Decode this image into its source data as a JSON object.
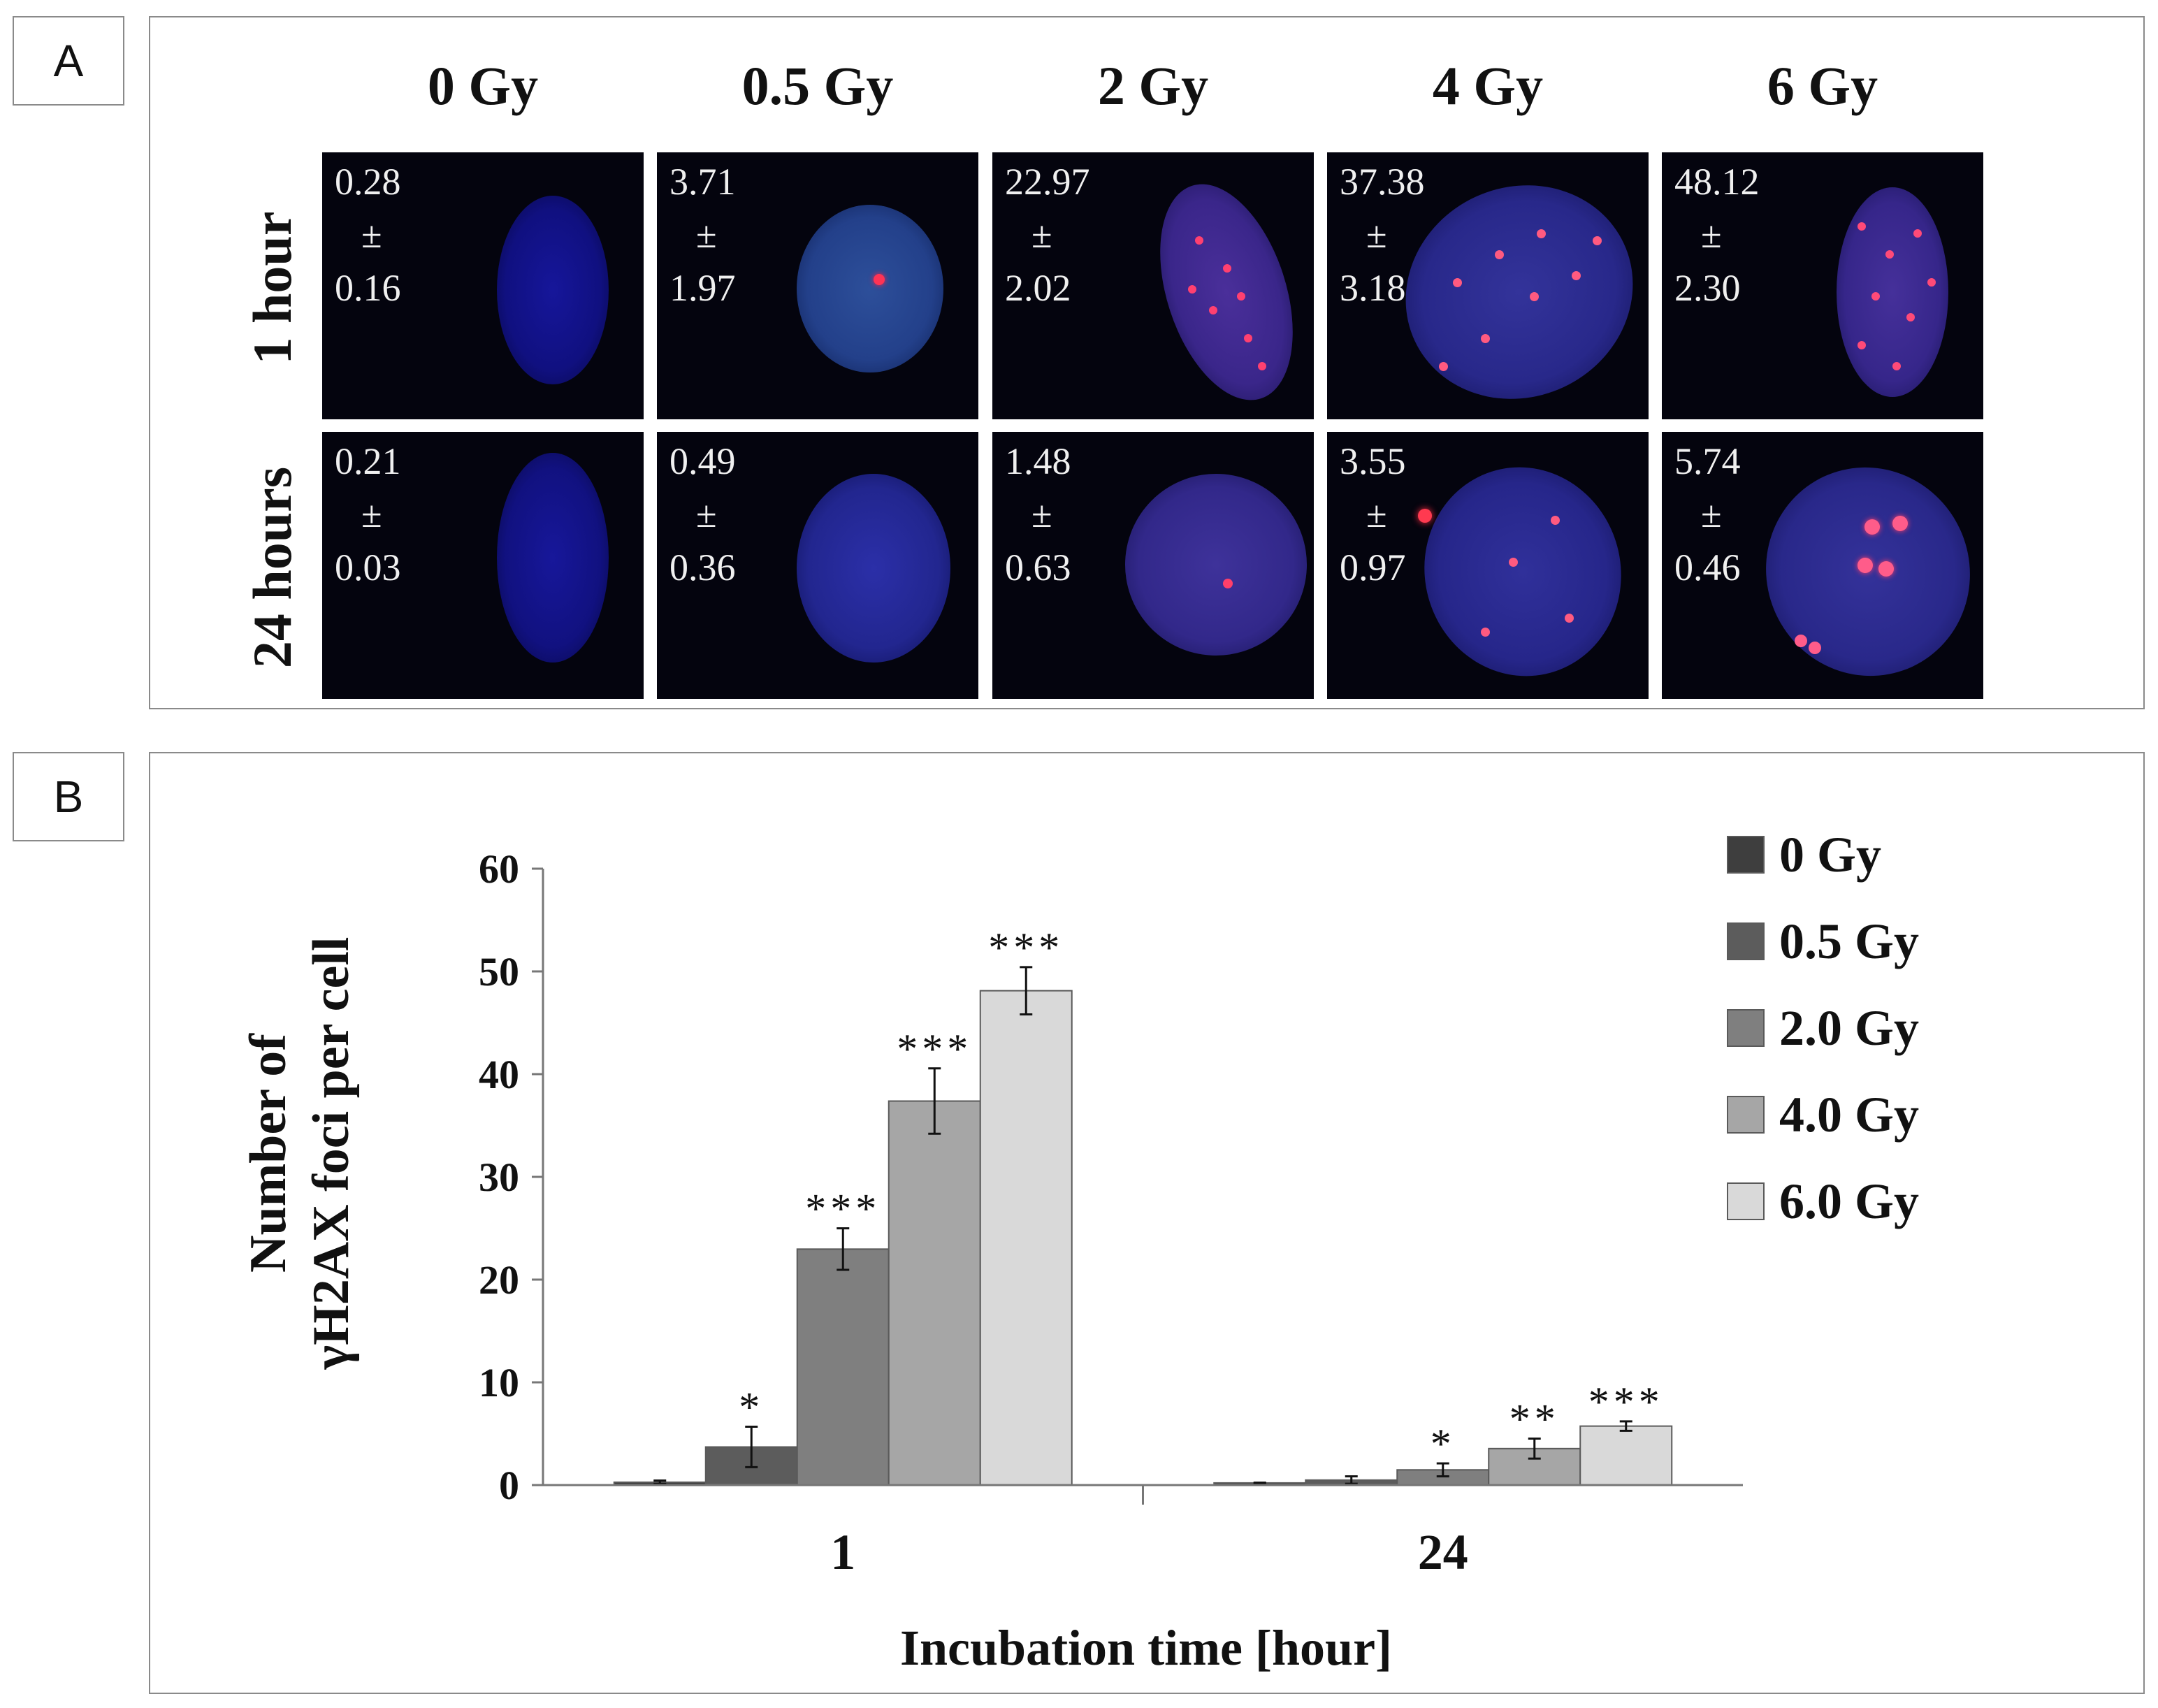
{
  "panel_a": {
    "label": "A",
    "columns": [
      "0 Gy",
      "0.5 Gy",
      "2 Gy",
      "4 Gy",
      "6 Gy"
    ],
    "rows": [
      {
        "label": "1 hour",
        "cells": [
          {
            "mean": "0.28",
            "pm": "±",
            "sd": "0.16"
          },
          {
            "mean": "3.71",
            "pm": "±",
            "sd": "1.97"
          },
          {
            "mean": "22.97",
            "pm": "±",
            "sd": "2.02"
          },
          {
            "mean": "37.38",
            "pm": "±",
            "sd": "3.18"
          },
          {
            "mean": "48.12",
            "pm": "±",
            "sd": "2.30"
          }
        ]
      },
      {
        "label": "24 hours",
        "cells": [
          {
            "mean": "0.21",
            "pm": "±",
            "sd": "0.03"
          },
          {
            "mean": "0.49",
            "pm": "±",
            "sd": "0.36"
          },
          {
            "mean": "1.48",
            "pm": "±",
            "sd": "0.63"
          },
          {
            "mean": "3.55",
            "pm": "±",
            "sd": "0.97"
          },
          {
            "mean": "5.74",
            "pm": "±",
            "sd": "0.46"
          }
        ]
      }
    ]
  },
  "panel_b": {
    "label": "B"
  },
  "chart_data": {
    "type": "bar",
    "title": "",
    "xlabel": "Incubation time [hour]",
    "ylabel_lines": [
      "Number of",
      "γH2AX foci per cell"
    ],
    "categories": [
      "1",
      "24"
    ],
    "ylim": [
      0,
      60
    ],
    "yticks": [
      0,
      10,
      20,
      30,
      40,
      50,
      60
    ],
    "legend_position": "right",
    "series": [
      {
        "name": "0 Gy",
        "color": "#3e3e3e",
        "values": [
          0.28,
          0.21
        ],
        "errors": [
          0.16,
          0.03
        ],
        "sig": [
          "",
          ""
        ]
      },
      {
        "name": "0.5 Gy",
        "color": "#5c5c5c",
        "values": [
          3.71,
          0.49
        ],
        "errors": [
          1.97,
          0.36
        ],
        "sig": [
          "*",
          ""
        ]
      },
      {
        "name": "2.0 Gy",
        "color": "#7f7f7f",
        "values": [
          22.97,
          1.48
        ],
        "errors": [
          2.02,
          0.63
        ],
        "sig": [
          "***",
          "*"
        ]
      },
      {
        "name": "4.0 Gy",
        "color": "#a6a6a6",
        "values": [
          37.38,
          3.55
        ],
        "errors": [
          3.18,
          0.97
        ],
        "sig": [
          "***",
          "**"
        ]
      },
      {
        "name": "6.0 Gy",
        "color": "#d9d9d9",
        "values": [
          48.12,
          5.74
        ],
        "errors": [
          2.3,
          0.46
        ],
        "sig": [
          "***",
          "***"
        ]
      }
    ]
  }
}
